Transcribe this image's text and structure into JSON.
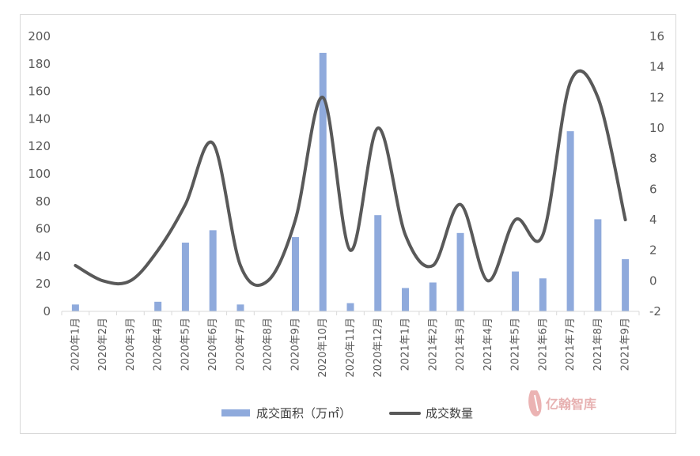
{
  "chart_data": {
    "type": "bar+line",
    "categories": [
      "2020年1月",
      "2020年2月",
      "2020年3月",
      "2020年4月",
      "2020年5月",
      "2020年6月",
      "2020年7月",
      "2020年8月",
      "2020年9月",
      "2020年10月",
      "2020年11月",
      "2020年12月",
      "2021年1月",
      "2021年2月",
      "2021年3月",
      "2021年4月",
      "2021年5月",
      "2021年6月",
      "2021年7月",
      "2021年8月",
      "2021年9月"
    ],
    "series": [
      {
        "name": "成交面积（万㎡）",
        "type": "bar",
        "axis": "left",
        "color": "#8faadc",
        "values": [
          5,
          0,
          0,
          7,
          50,
          59,
          5,
          0,
          54,
          188,
          6,
          70,
          17,
          21,
          57,
          0,
          29,
          24,
          131,
          67,
          38
        ]
      },
      {
        "name": "成交数量",
        "type": "line",
        "axis": "right",
        "color": "#595959",
        "values": [
          1,
          0,
          0,
          2,
          5,
          9,
          1,
          0,
          4,
          12,
          2,
          10,
          3,
          1,
          5,
          0,
          4,
          3,
          13,
          12,
          4
        ]
      }
    ],
    "ylim_left": [
      0,
      200
    ],
    "yticks_left": [
      "0",
      "20",
      "40",
      "60",
      "80",
      "100",
      "120",
      "140",
      "160",
      "180",
      "200"
    ],
    "ylim_right": [
      -2,
      16
    ],
    "yticks_right": [
      "-2",
      "0",
      "2",
      "4",
      "6",
      "8",
      "10",
      "12",
      "14",
      "16"
    ],
    "grid": false,
    "legend_position": "bottom"
  },
  "watermark": {
    "text": "亿翰智库"
  }
}
